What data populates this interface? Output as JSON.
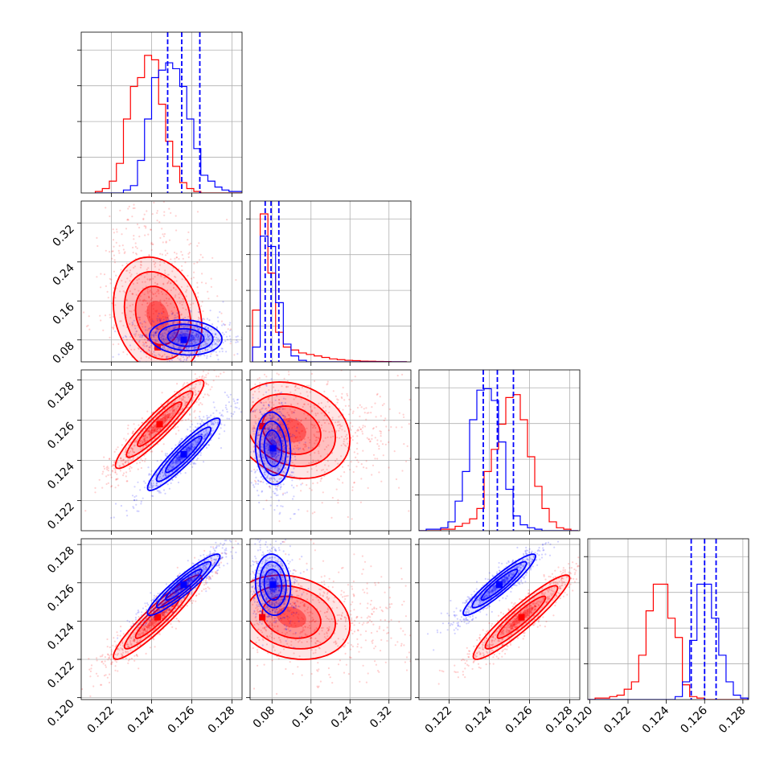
{
  "figure": {
    "title": "",
    "type": "corner-plot"
  },
  "colors": {
    "red": "#ff0000",
    "blue": "#0000ff",
    "grid": "#b0b0b0",
    "axis": "#000000"
  },
  "chart_data": {
    "type": "corner",
    "series": [
      {
        "name": "",
        "color": "#ff0000"
      },
      {
        "name": "",
        "color": "#0000ff"
      }
    ],
    "parameters": [
      {
        "range": [
          0.1205,
          0.1285
        ],
        "ticks": [
          0.122,
          0.124,
          0.126,
          0.128
        ],
        "tick_labels": [
          "0.122",
          "0.124",
          "0.126",
          "0.128"
        ]
      },
      {
        "range": [
          0.035,
          0.365
        ],
        "ticks": [
          0.08,
          0.16,
          0.24,
          0.32
        ],
        "tick_labels": [
          "0.08",
          "0.16",
          "0.24",
          "0.32"
        ]
      },
      {
        "range": [
          0.1205,
          0.1285
        ],
        "ticks": [
          0.122,
          0.124,
          0.126,
          0.128
        ],
        "tick_labels": [
          "0.122",
          "0.124",
          "0.126",
          "0.128"
        ]
      },
      {
        "range": [
          0.1199,
          0.1283
        ],
        "ticks": [
          0.12,
          0.122,
          0.124,
          0.126,
          0.128
        ],
        "tick_labels": [
          "0.120",
          "0.122",
          "0.124",
          "0.126",
          "0.128"
        ]
      }
    ],
    "marginals": [
      {
        "red": {
          "bin_start": 0.1212,
          "bin_width": 0.00035,
          "counts": [
            0.01,
            0.03,
            0.08,
            0.2,
            0.5,
            0.72,
            0.78,
            0.93,
            0.9,
            0.6,
            0.35,
            0.18,
            0.07,
            0.03,
            0.01,
            0,
            0,
            0,
            0,
            0,
            0,
            0
          ]
        },
        "blue": {
          "bin_start": 0.1212,
          "bin_width": 0.00035,
          "counts": [
            0,
            0,
            0,
            0,
            0.02,
            0.05,
            0.22,
            0.5,
            0.78,
            0.83,
            0.88,
            0.84,
            0.72,
            0.5,
            0.3,
            0.12,
            0.08,
            0.04,
            0.02,
            0.01,
            0.01,
            0
          ]
        },
        "quantile_lines": [
          0.1248,
          0.1255,
          0.1264
        ]
      },
      {
        "red": {
          "bin_start": 0.04,
          "bin_width": 0.0158,
          "counts": [
            0.35,
            1.0,
            0.6,
            0.2,
            0.1,
            0.08,
            0.06,
            0.05,
            0.04,
            0.03,
            0.02,
            0.015,
            0.01,
            0.008,
            0.005,
            0.004,
            0.003,
            0.002,
            0.001,
            0.001
          ]
        },
        "blue": {
          "bin_start": 0.04,
          "bin_width": 0.0158,
          "counts": [
            0.1,
            0.85,
            0.78,
            0.4,
            0.12,
            0.04,
            0.01,
            0,
            0,
            0,
            0,
            0,
            0,
            0,
            0,
            0,
            0,
            0,
            0,
            0
          ]
        },
        "quantile_lines": [
          0.066,
          0.078,
          0.094
        ]
      },
      {
        "red": {
          "bin_start": 0.1205,
          "bin_width": 0.00036,
          "counts": [
            0,
            0,
            0,
            0.01,
            0.01,
            0.03,
            0.05,
            0.08,
            0.15,
            0.4,
            0.55,
            0.72,
            0.9,
            0.92,
            0.75,
            0.5,
            0.3,
            0.15,
            0.06,
            0.02,
            0.01,
            0
          ]
        },
        "blue": {
          "bin_start": 0.1205,
          "bin_width": 0.00036,
          "counts": [
            0,
            0.01,
            0.01,
            0.02,
            0.06,
            0.2,
            0.4,
            0.75,
            0.95,
            0.96,
            0.88,
            0.6,
            0.28,
            0.1,
            0.04,
            0.02,
            0.01,
            0,
            0,
            0,
            0,
            0
          ]
        },
        "quantile_lines": [
          0.1237,
          0.1244,
          0.1252
        ]
      },
      {
        "red": {
          "bin_start": 0.1199,
          "bin_width": 0.00038,
          "counts": [
            0,
            0.01,
            0.01,
            0.02,
            0.03,
            0.07,
            0.12,
            0.3,
            0.6,
            0.78,
            0.78,
            0.55,
            0.42,
            0.1,
            0.02,
            0.01,
            0,
            0,
            0,
            0,
            0,
            0
          ]
        },
        "blue": {
          "bin_start": 0.1199,
          "bin_width": 0.00038,
          "counts": [
            0,
            0,
            0,
            0,
            0,
            0,
            0,
            0,
            0,
            0,
            0,
            0,
            0.02,
            0.12,
            0.4,
            0.78,
            0.78,
            0.55,
            0.3,
            0.12,
            0.03,
            0.01
          ]
        },
        "quantile_lines": [
          0.1253,
          0.126,
          0.1266
        ]
      }
    ],
    "pairs": [
      {
        "row": 1,
        "col": 0,
        "red": {
          "mean": [
            0.1243,
            0.13
          ],
          "sd": [
            0.0011,
            0.06
          ],
          "corr": -0.2,
          "core": [
            0.1243,
            0.065
          ]
        },
        "blue": {
          "mean": [
            0.1257,
            0.085
          ],
          "sd": [
            0.0009,
            0.018
          ],
          "corr": -0.1,
          "core": [
            0.1256,
            0.08
          ]
        }
      },
      {
        "row": 2,
        "col": 0,
        "red": {
          "mean": [
            0.1244,
            0.1258
          ],
          "sd": [
            0.0011,
            0.0011
          ],
          "corr": 0.93
        },
        "blue": {
          "mean": [
            0.1256,
            0.1243
          ],
          "sd": [
            0.0009,
            0.0009
          ],
          "corr": 0.93
        }
      },
      {
        "row": 2,
        "col": 1,
        "red": {
          "mean": [
            0.12,
            0.1255
          ],
          "sd": [
            0.06,
            0.0012
          ],
          "corr": -0.2,
          "core": [
            0.06,
            0.1257
          ]
        },
        "blue": {
          "mean": [
            0.082,
            0.1246
          ],
          "sd": [
            0.018,
            0.0009
          ],
          "corr": -0.1
        }
      },
      {
        "row": 3,
        "col": 0,
        "red": {
          "mean": [
            0.1243,
            0.1242
          ],
          "sd": [
            0.0011,
            0.0011
          ],
          "corr": 0.93
        },
        "blue": {
          "mean": [
            0.1256,
            0.1259
          ],
          "sd": [
            0.0009,
            0.0008
          ],
          "corr": 0.93
        }
      },
      {
        "row": 3,
        "col": 1,
        "red": {
          "mean": [
            0.12,
            0.1242
          ],
          "sd": [
            0.06,
            0.0011
          ],
          "corr": -0.2,
          "core": [
            0.06,
            0.1242
          ]
        },
        "blue": {
          "mean": [
            0.082,
            0.1259
          ],
          "sd": [
            0.018,
            0.0008
          ],
          "corr": -0.1
        }
      },
      {
        "row": 3,
        "col": 2,
        "red": {
          "mean": [
            0.1256,
            0.1242
          ],
          "sd": [
            0.0012,
            0.0011
          ],
          "corr": 0.93
        },
        "blue": {
          "mean": [
            0.1245,
            0.1259
          ],
          "sd": [
            0.0009,
            0.0008
          ],
          "corr": 0.93
        }
      }
    ]
  }
}
